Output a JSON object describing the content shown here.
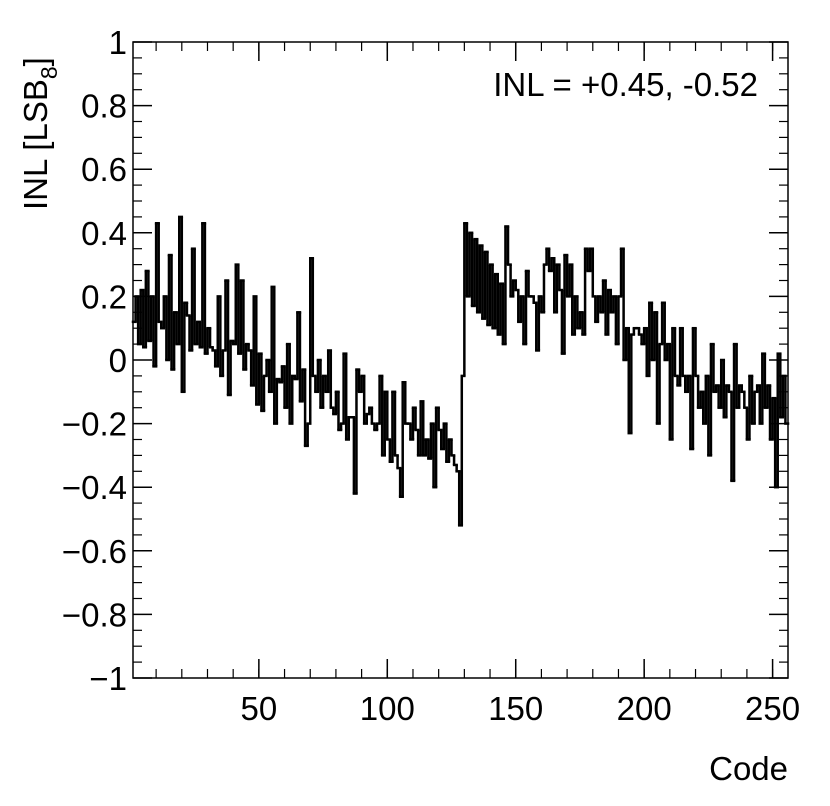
{
  "chart_data": {
    "type": "histogram",
    "annotation": "INL = +0.45, -0.52",
    "xlabel": "Code",
    "ylabel": {
      "main": "INL [LSB",
      "sub": "8",
      "close": "]"
    },
    "color": "#000000",
    "xlim": [
      1,
      256
    ],
    "xticks": [
      50,
      100,
      150,
      200,
      250
    ],
    "ylim": [
      -1,
      1
    ],
    "yticks": [
      {
        "value": -1,
        "label": "−1"
      },
      {
        "value": -0.8,
        "label": "−0.8"
      },
      {
        "value": -0.6,
        "label": "−0.6"
      },
      {
        "value": -0.4,
        "label": "−0.4"
      },
      {
        "value": -0.2,
        "label": "−0.2"
      },
      0,
      0.2,
      0.4,
      0.6,
      0.8,
      1
    ],
    "bins": [
      1,
      2,
      3,
      4,
      5,
      6,
      7,
      8,
      9,
      10,
      11,
      12,
      13,
      14,
      15,
      16,
      17,
      18,
      19,
      20,
      21,
      22,
      23,
      24,
      25,
      26,
      27,
      28,
      29,
      30,
      31,
      32,
      33,
      34,
      35,
      36,
      37,
      38,
      39,
      40,
      41,
      42,
      43,
      44,
      45,
      46,
      47,
      48,
      49,
      50,
      51,
      52,
      53,
      54,
      55,
      56,
      57,
      58,
      59,
      60,
      61,
      62,
      63,
      64,
      65,
      66,
      67,
      68,
      69,
      70,
      71,
      72,
      73,
      74,
      75,
      76,
      77,
      78,
      79,
      80,
      81,
      82,
      83,
      84,
      85,
      86,
      87,
      88,
      89,
      90,
      91,
      92,
      93,
      94,
      95,
      96,
      97,
      98,
      99,
      100,
      101,
      102,
      103,
      104,
      105,
      106,
      107,
      108,
      109,
      110,
      111,
      112,
      113,
      114,
      115,
      116,
      117,
      118,
      119,
      120,
      121,
      122,
      123,
      124,
      125,
      126,
      127,
      128,
      129,
      130,
      131,
      132,
      133,
      134,
      135,
      136,
      137,
      138,
      139,
      140,
      141,
      142,
      143,
      144,
      145,
      146,
      147,
      148,
      149,
      150,
      151,
      152,
      153,
      154,
      155,
      156,
      157,
      158,
      159,
      160,
      161,
      162,
      163,
      164,
      165,
      166,
      167,
      168,
      169,
      170,
      171,
      172,
      173,
      174,
      175,
      176,
      177,
      178,
      179,
      180,
      181,
      182,
      183,
      184,
      185,
      186,
      187,
      188,
      189,
      190,
      191,
      192,
      193,
      194,
      195,
      196,
      197,
      198,
      199,
      200,
      201,
      202,
      203,
      204,
      205,
      206,
      207,
      208,
      209,
      210,
      211,
      212,
      213,
      214,
      215,
      216,
      217,
      218,
      219,
      220,
      221,
      222,
      223,
      224,
      225,
      226,
      227,
      228,
      229,
      230,
      231,
      232,
      233,
      234,
      235,
      236,
      237,
      238,
      239,
      240,
      241,
      242,
      243,
      244,
      245,
      246,
      247,
      248,
      249,
      250,
      251,
      252,
      253,
      254,
      255,
      256
    ],
    "values": [
      0.12,
      0.2,
      0.05,
      0.22,
      0.04,
      0.28,
      0.06,
      0.2,
      -0.02,
      0.43,
      0.12,
      0.1,
      0.2,
      0.0,
      0.33,
      -0.03,
      0.15,
      0.05,
      0.45,
      -0.1,
      0.18,
      0.14,
      0.03,
      0.35,
      0.05,
      0.12,
      0.04,
      0.43,
      0.02,
      0.1,
      0.04,
      0.03,
      -0.02,
      0.2,
      -0.05,
      0.03,
      0.25,
      -0.11,
      0.06,
      0.05,
      0.3,
      0.02,
      0.25,
      -0.03,
      0.05,
      0.03,
      -0.08,
      0.2,
      -0.14,
      0.02,
      -0.16,
      -0.05,
      0.0,
      -0.1,
      0.23,
      -0.2,
      -0.06,
      -0.07,
      -0.02,
      -0.15,
      0.05,
      -0.2,
      -0.05,
      -0.06,
      0.15,
      -0.13,
      -0.03,
      -0.27,
      -0.2,
      0.32,
      -0.05,
      -0.1,
      0.0,
      -0.15,
      -0.05,
      -0.1,
      0.03,
      -0.15,
      -0.17,
      -0.1,
      -0.22,
      -0.2,
      0.02,
      -0.25,
      -0.18,
      -0.18,
      -0.42,
      -0.03,
      -0.1,
      -0.05,
      -0.2,
      -0.17,
      -0.15,
      -0.2,
      -0.22,
      -0.2,
      -0.05,
      -0.3,
      -0.1,
      -0.25,
      -0.32,
      -0.1,
      -0.3,
      -0.34,
      -0.43,
      -0.07,
      -0.2,
      -0.2,
      -0.25,
      -0.15,
      -0.22,
      -0.3,
      -0.13,
      -0.3,
      -0.25,
      -0.31,
      -0.2,
      -0.4,
      -0.15,
      -0.22,
      -0.28,
      -0.2,
      -0.32,
      -0.25,
      -0.3,
      -0.33,
      -0.35,
      -0.52,
      -0.05,
      0.43,
      0.2,
      0.4,
      0.17,
      0.38,
      0.15,
      0.36,
      0.13,
      0.34,
      0.11,
      0.3,
      0.1,
      0.27,
      0.08,
      0.24,
      0.05,
      0.42,
      0.3,
      0.2,
      0.25,
      0.22,
      0.12,
      0.2,
      0.05,
      0.28,
      0.2,
      0.2,
      0.18,
      0.03,
      0.2,
      0.15,
      0.3,
      0.35,
      0.28,
      0.32,
      0.15,
      0.3,
      0.22,
      0.02,
      0.33,
      0.2,
      0.3,
      0.08,
      0.2,
      0.1,
      0.15,
      0.08,
      0.35,
      0.28,
      0.35,
      0.2,
      0.12,
      0.2,
      0.15,
      0.25,
      0.08,
      0.22,
      0.15,
      0.2,
      0.05,
      0.2,
      0.35,
      0.0,
      0.1,
      -0.23,
      0.08,
      0.1,
      0.1,
      0.08,
      0.05,
      0.1,
      -0.05,
      0.18,
      0.0,
      0.15,
      -0.2,
      0.05,
      0.18,
      0.0,
      0.05,
      -0.25,
      0.1,
      -0.05,
      -0.08,
      0.1,
      -0.05,
      -0.1,
      -0.05,
      -0.28,
      0.1,
      -0.05,
      -0.15,
      -0.1,
      -0.2,
      -0.05,
      -0.3,
      0.05,
      -0.1,
      -0.08,
      -0.15,
      0.0,
      -0.18,
      -0.08,
      -0.1,
      -0.38,
      0.05,
      -0.15,
      -0.08,
      -0.1,
      -0.15,
      -0.25,
      -0.05,
      -0.2,
      -0.1,
      -0.08,
      -0.2,
      0.02,
      -0.15,
      -0.08,
      -0.25,
      -0.12,
      -0.4,
      0.02,
      -0.18,
      -0.05,
      -0.2
    ]
  }
}
